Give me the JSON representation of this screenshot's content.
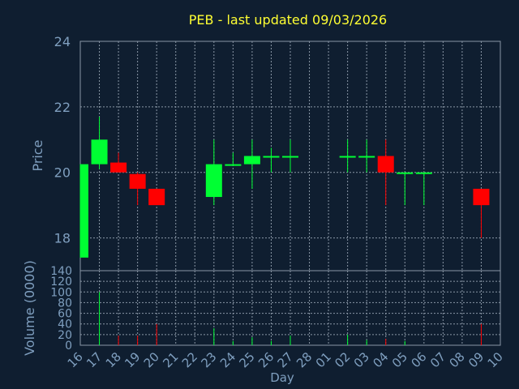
{
  "colors": {
    "background": "#0f1e30",
    "title": "#ffff33",
    "axis_text": "#7f9fbf",
    "grid": "#8a97a6",
    "up": "#00ff33",
    "down": "#ff0000"
  },
  "chart_data": [
    {
      "type": "candlestick",
      "title": "PEB - last updated 09/03/2026",
      "ylabel": "Price",
      "ylim": [
        17,
        24
      ],
      "yticks": [
        18,
        20,
        22,
        24
      ],
      "grid": true,
      "categories": [
        "16",
        "17",
        "18",
        "19",
        "20",
        "21",
        "22",
        "23",
        "24",
        "25",
        "26",
        "27",
        "28",
        "01",
        "02",
        "03",
        "04",
        "05",
        "06",
        "07",
        "08",
        "09",
        "10"
      ],
      "ohlc": [
        {
          "day": "16",
          "open": 17.4,
          "high": 20.25,
          "low": 17.4,
          "close": 20.25
        },
        {
          "day": "17",
          "open": 20.25,
          "high": 21.7,
          "low": 20.1,
          "close": 21.0
        },
        {
          "day": "18",
          "open": 20.3,
          "high": 20.6,
          "low": 20.0,
          "close": 20.0
        },
        {
          "day": "19",
          "open": 19.95,
          "high": 20.0,
          "low": 19.0,
          "close": 19.5
        },
        {
          "day": "20",
          "open": 19.5,
          "high": 19.5,
          "low": 19.0,
          "close": 19.0
        },
        {
          "day": "23",
          "open": 19.25,
          "high": 21.0,
          "low": 19.0,
          "close": 20.25
        },
        {
          "day": "24",
          "open": 20.2,
          "high": 20.6,
          "low": 20.2,
          "close": 20.25
        },
        {
          "day": "25",
          "open": 20.25,
          "high": 21.0,
          "low": 19.5,
          "close": 20.5
        },
        {
          "day": "26",
          "open": 20.5,
          "high": 20.75,
          "low": 20.0,
          "close": 20.5
        },
        {
          "day": "27",
          "open": 20.5,
          "high": 21.0,
          "low": 20.0,
          "close": 20.5
        },
        {
          "day": "02",
          "open": 20.5,
          "high": 21.0,
          "low": 20.0,
          "close": 20.5
        },
        {
          "day": "03",
          "open": 20.5,
          "high": 21.0,
          "low": 20.0,
          "close": 20.5
        },
        {
          "day": "04",
          "open": 20.5,
          "high": 21.0,
          "low": 19.0,
          "close": 20.0
        },
        {
          "day": "05",
          "open": 20.0,
          "high": 20.0,
          "low": 19.0,
          "close": 20.0
        },
        {
          "day": "06",
          "open": 20.0,
          "high": 20.0,
          "low": 19.0,
          "close": 20.0
        },
        {
          "day": "09",
          "open": 19.5,
          "high": 19.5,
          "low": 18.0,
          "close": 19.0
        }
      ]
    },
    {
      "type": "bar",
      "ylabel": "Volume (0000)",
      "xlabel": "Day",
      "ylim": [
        0,
        140
      ],
      "yticks": [
        0,
        20,
        40,
        60,
        80,
        100,
        120,
        140
      ],
      "categories": [
        "16",
        "17",
        "18",
        "19",
        "20",
        "21",
        "22",
        "23",
        "24",
        "25",
        "26",
        "27",
        "28",
        "01",
        "02",
        "03",
        "04",
        "05",
        "06",
        "07",
        "08",
        "09",
        "10"
      ],
      "volumes": [
        {
          "day": "17",
          "value": 100,
          "direction": "up"
        },
        {
          "day": "18",
          "value": 18,
          "direction": "down"
        },
        {
          "day": "19",
          "value": 18,
          "direction": "down"
        },
        {
          "day": "20",
          "value": 40,
          "direction": "down"
        },
        {
          "day": "23",
          "value": 32,
          "direction": "up"
        },
        {
          "day": "24",
          "value": 8,
          "direction": "up"
        },
        {
          "day": "25",
          "value": 15,
          "direction": "up"
        },
        {
          "day": "26",
          "value": 8,
          "direction": "up"
        },
        {
          "day": "27",
          "value": 18,
          "direction": "up"
        },
        {
          "day": "02",
          "value": 20,
          "direction": "up"
        },
        {
          "day": "03",
          "value": 10,
          "direction": "up"
        },
        {
          "day": "04",
          "value": 12,
          "direction": "down"
        },
        {
          "day": "05",
          "value": 8,
          "direction": "up"
        },
        {
          "day": "09",
          "value": 40,
          "direction": "down"
        }
      ]
    }
  ]
}
